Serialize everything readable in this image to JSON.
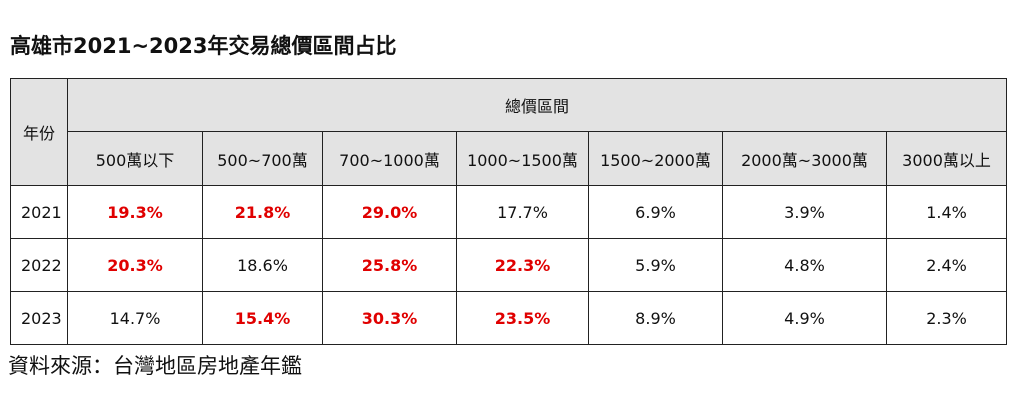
{
  "title": "高雄市2021~2023年交易總價區間占比",
  "table": {
    "year_header": "年份",
    "group_header": "總價區間",
    "columns": [
      "500萬以下",
      "500~700萬",
      "700~1000萬",
      "1000~1500萬",
      "1500~2000萬",
      "2000萬~3000萬",
      "3000萬以上"
    ],
    "highlight_color": "#e00000",
    "rows": [
      {
        "year": "2021",
        "cells": [
          "19.3%",
          "21.8%",
          "29.0%",
          "17.7%",
          "6.9%",
          "3.9%",
          "1.4%"
        ],
        "highlight": [
          true,
          true,
          true,
          false,
          false,
          false,
          false
        ]
      },
      {
        "year": "2022",
        "cells": [
          "20.3%",
          "18.6%",
          "25.8%",
          "22.3%",
          "5.9%",
          "4.8%",
          "2.4%"
        ],
        "highlight": [
          true,
          false,
          true,
          true,
          false,
          false,
          false
        ]
      },
      {
        "year": "2023",
        "cells": [
          "14.7%",
          "15.4%",
          "30.3%",
          "23.5%",
          "8.9%",
          "4.9%",
          "2.3%"
        ],
        "highlight": [
          false,
          true,
          true,
          true,
          false,
          false,
          false
        ]
      }
    ]
  },
  "source": "資料來源：台灣地區房地產年鑑"
}
